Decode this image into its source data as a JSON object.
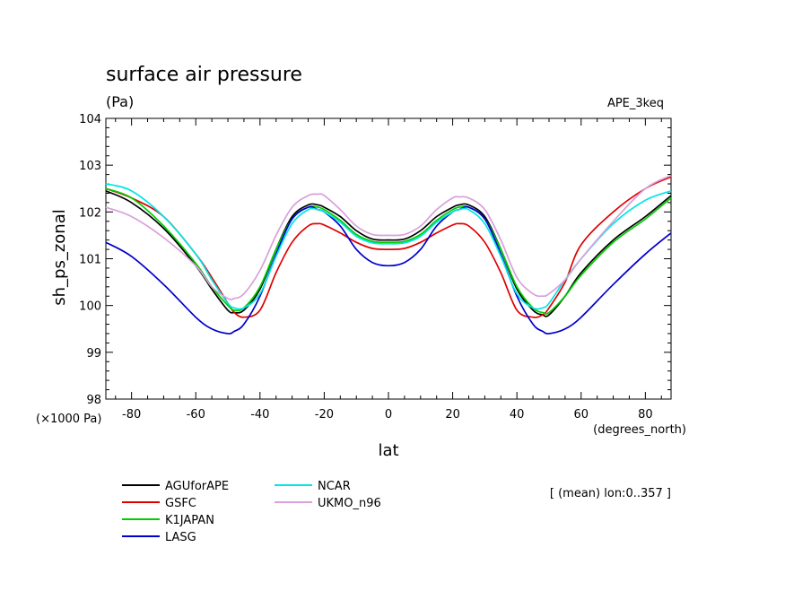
{
  "chart_data": {
    "type": "line",
    "title": "surface air pressure",
    "units": "(Pa)",
    "experiment": "APE_3keq",
    "ylabel": "sh_ps_zonal",
    "xlabel": "lat",
    "y_scale_note": "(×1000 Pa)",
    "x_unit_note": "(degrees_north)",
    "note": "[ (mean) lon:0..357 ]",
    "xlim": [
      -88,
      88
    ],
    "ylim": [
      98,
      104
    ],
    "x_ticks": [
      -80,
      -60,
      -40,
      -20,
      0,
      20,
      40,
      60,
      80
    ],
    "x_tick_labels": [
      "-80",
      "-60",
      "-40",
      "-20",
      "0",
      "20",
      "40",
      "60",
      "80"
    ],
    "y_ticks": [
      98,
      99,
      100,
      101,
      102,
      103,
      104
    ],
    "y_tick_labels": [
      "98",
      "99",
      "100",
      "101",
      "102",
      "103",
      "104"
    ],
    "grid": false,
    "legend_position": "bottom-left",
    "x": [
      -88,
      -80,
      -70,
      -60,
      -55,
      -50,
      -48,
      -45,
      -40,
      -35,
      -30,
      -25,
      -22,
      -20,
      -15,
      -10,
      -5,
      0,
      5,
      10,
      15,
      20,
      22,
      25,
      30,
      35,
      40,
      45,
      48,
      50,
      55,
      60,
      70,
      80,
      88
    ],
    "series": [
      {
        "name": "AGUforAPE",
        "color": "#000000",
        "values": [
          102.45,
          102.2,
          101.65,
          100.85,
          100.35,
          99.9,
          99.85,
          99.9,
          100.35,
          101.2,
          101.9,
          102.15,
          102.15,
          102.1,
          101.9,
          101.6,
          101.42,
          101.4,
          101.42,
          101.6,
          101.9,
          102.1,
          102.15,
          102.15,
          101.9,
          101.2,
          100.35,
          99.9,
          99.8,
          99.8,
          100.2,
          100.7,
          101.4,
          101.9,
          102.35
        ]
      },
      {
        "name": "GSFC",
        "color": "#e00000",
        "values": [
          102.5,
          102.3,
          101.9,
          101.1,
          100.6,
          100.05,
          99.85,
          99.75,
          99.9,
          100.7,
          101.35,
          101.7,
          101.75,
          101.72,
          101.55,
          101.35,
          101.22,
          101.2,
          101.22,
          101.35,
          101.55,
          101.72,
          101.75,
          101.7,
          101.35,
          100.7,
          99.9,
          99.75,
          99.8,
          99.95,
          100.5,
          101.3,
          102.0,
          102.5,
          102.75
        ]
      },
      {
        "name": "K1JAPAN",
        "color": "#00cc00",
        "values": [
          102.5,
          102.3,
          101.7,
          100.9,
          100.4,
          100.0,
          99.9,
          99.95,
          100.4,
          101.2,
          101.85,
          102.1,
          102.1,
          102.05,
          101.82,
          101.52,
          101.37,
          101.35,
          101.37,
          101.52,
          101.82,
          102.05,
          102.1,
          102.1,
          101.85,
          101.2,
          100.4,
          99.95,
          99.85,
          99.85,
          100.2,
          100.65,
          101.35,
          101.85,
          102.3
        ]
      },
      {
        "name": "LASG",
        "color": "#0000cc",
        "values": [
          101.35,
          101.05,
          100.45,
          99.75,
          99.5,
          99.4,
          99.45,
          99.6,
          100.2,
          101.1,
          101.85,
          102.1,
          102.05,
          102.0,
          101.7,
          101.2,
          100.92,
          100.85,
          100.92,
          101.2,
          101.7,
          102.0,
          102.05,
          102.1,
          101.85,
          101.1,
          100.2,
          99.6,
          99.45,
          99.4,
          99.5,
          99.75,
          100.45,
          101.1,
          101.55
        ]
      },
      {
        "name": "NCAR",
        "color": "#00e5e5",
        "values": [
          102.6,
          102.45,
          101.9,
          101.1,
          100.55,
          100.05,
          99.95,
          99.95,
          100.25,
          101.05,
          101.75,
          102.05,
          102.05,
          102.0,
          101.78,
          101.48,
          101.34,
          101.32,
          101.34,
          101.48,
          101.78,
          102.0,
          102.05,
          102.05,
          101.75,
          101.05,
          100.25,
          99.95,
          99.95,
          100.05,
          100.55,
          101.0,
          101.75,
          102.25,
          102.45
        ]
      },
      {
        "name": "UKMO_n96",
        "color": "#d9a0d9",
        "values": [
          102.1,
          101.9,
          101.45,
          100.85,
          100.4,
          100.15,
          100.15,
          100.25,
          100.75,
          101.5,
          102.1,
          102.35,
          102.38,
          102.35,
          102.05,
          101.7,
          101.52,
          101.5,
          101.52,
          101.7,
          102.05,
          102.3,
          102.32,
          102.3,
          102.05,
          101.4,
          100.6,
          100.25,
          100.2,
          100.25,
          100.55,
          101.0,
          101.8,
          102.5,
          102.78
        ]
      }
    ]
  }
}
